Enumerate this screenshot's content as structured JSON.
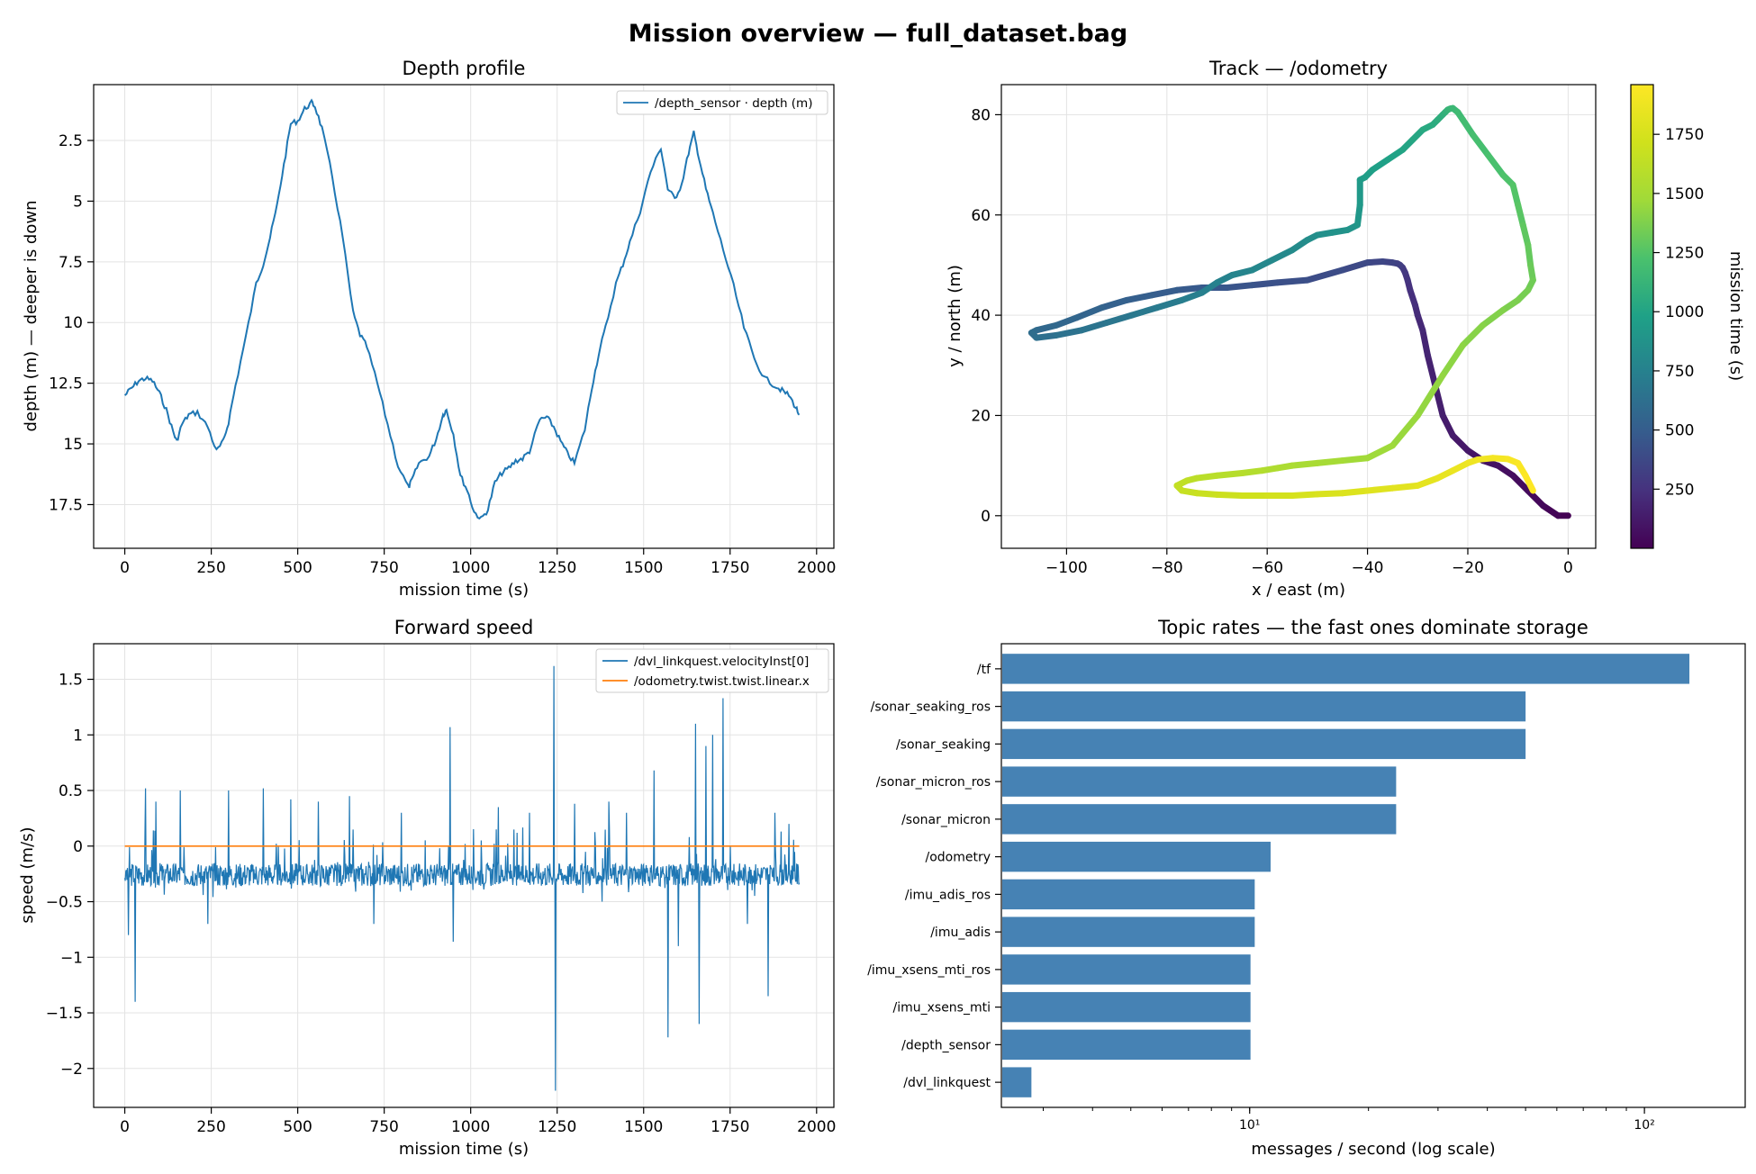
{
  "figure": {
    "title": "Mission overview — full_dataset.bag"
  },
  "chart_data": [
    {
      "id": "depth",
      "type": "line",
      "title": "Depth profile",
      "xlabel": "mission time (s)",
      "ylabel": "depth (m)  — deeper is down",
      "xlim": [
        -90,
        2050
      ],
      "ylim": [
        19.3,
        0.2
      ],
      "inverted_y": true,
      "xticks": [
        0,
        250,
        500,
        750,
        1000,
        1250,
        1500,
        1750,
        2000
      ],
      "yticks": [
        2.5,
        5.0,
        7.5,
        10.0,
        12.5,
        15.0,
        17.5
      ],
      "grid": true,
      "legend_position": "upper right",
      "series": [
        {
          "name": "/depth_sensor · depth (m)",
          "color": "#1f77b4",
          "x": [
            0,
            20,
            40,
            60,
            80,
            100,
            120,
            140,
            150,
            165,
            185,
            210,
            240,
            265,
            285,
            300,
            320,
            350,
            380,
            400,
            420,
            440,
            460,
            480,
            500,
            520,
            540,
            550,
            570,
            600,
            630,
            660,
            680,
            700,
            730,
            760,
            790,
            820,
            830,
            850,
            880,
            900,
            920,
            930,
            950,
            970,
            990,
            1010,
            1030,
            1050,
            1070,
            1090,
            1110,
            1130,
            1150,
            1170,
            1200,
            1220,
            1240,
            1260,
            1280,
            1300,
            1330,
            1350,
            1370,
            1390,
            1420,
            1440,
            1460,
            1490,
            1520,
            1550,
            1570,
            1590,
            1610,
            1630,
            1645,
            1660,
            1680,
            1700,
            1730,
            1760,
            1790,
            1820,
            1850,
            1880,
            1900,
            1920,
            1940,
            1950
          ],
          "y": [
            13.0,
            12.7,
            12.4,
            12.3,
            12.4,
            12.9,
            13.6,
            14.5,
            14.9,
            14.2,
            13.8,
            13.7,
            14.3,
            15.3,
            14.9,
            14.1,
            12.6,
            10.6,
            8.4,
            7.6,
            6.5,
            5.2,
            3.5,
            1.8,
            1.7,
            1.2,
            0.95,
            1.1,
            2.0,
            4.0,
            6.5,
            9.6,
            10.5,
            11.0,
            12.5,
            14.2,
            15.9,
            16.8,
            16.5,
            15.8,
            15.5,
            14.8,
            13.8,
            13.6,
            14.6,
            16.3,
            16.9,
            17.8,
            18.1,
            17.7,
            16.6,
            16.2,
            16.0,
            15.7,
            15.6,
            15.3,
            14.0,
            13.9,
            14.3,
            14.9,
            15.4,
            15.8,
            14.4,
            12.7,
            11.3,
            10.2,
            8.4,
            7.6,
            6.7,
            5.4,
            3.8,
            2.8,
            4.5,
            4.9,
            4.3,
            3.0,
            2.2,
            3.2,
            4.5,
            5.5,
            7.0,
            8.5,
            10.2,
            11.5,
            12.3,
            12.6,
            12.8,
            13.0,
            13.5,
            13.8
          ]
        }
      ]
    },
    {
      "id": "track",
      "type": "scatter",
      "title": "Track — /odometry",
      "xlabel": "x / east (m)",
      "ylabel": "y / north (m)",
      "xlim": [
        -113,
        5.5
      ],
      "ylim": [
        -6.5,
        86
      ],
      "xticks": [
        -100,
        -80,
        -60,
        -40,
        -20,
        0
      ],
      "yticks": [
        0,
        20,
        40,
        60,
        80
      ],
      "grid": true,
      "colorbar": {
        "label": "mission time (s)",
        "range": [
          0,
          1960
        ],
        "ticks": [
          250,
          500,
          750,
          1000,
          1250,
          1500,
          1750
        ],
        "colormap": "viridis"
      },
      "series": [
        {
          "x": [
            0,
            -2,
            -5,
            -8,
            -11,
            -14,
            -17,
            -20,
            -23,
            -25,
            -26.5,
            -28,
            -29,
            -30,
            -30.5,
            -31.5,
            -32,
            -32.5,
            -33,
            -33.5,
            -34,
            -35,
            -37,
            -40,
            -45,
            -52,
            -58,
            -63,
            -68,
            -73,
            -78,
            -83,
            -88,
            -93,
            -98,
            -102,
            -106,
            -107,
            -106,
            -102,
            -97,
            -92,
            -87,
            -82,
            -77,
            -73,
            -70,
            -67,
            -63,
            -59,
            -55,
            -52,
            -50,
            -47,
            -44,
            -42,
            -41.5,
            -41.5,
            -40.5,
            -39,
            -36,
            -33,
            -31,
            -29,
            -27,
            -26,
            -25,
            -24.5,
            -24,
            -23.5,
            -23,
            -22,
            -21,
            -19,
            -16,
            -13,
            -11,
            -10,
            -9,
            -8,
            -7.5,
            -7,
            -8,
            -10,
            -13,
            -17,
            -21,
            -25,
            -30,
            -35,
            -40,
            -45,
            -50,
            -55,
            -58,
            -61,
            -65,
            -70,
            -74,
            -76,
            -78,
            -77,
            -74,
            -70,
            -65,
            -60,
            -55,
            -50,
            -45,
            -40,
            -35,
            -30,
            -26,
            -23,
            -20,
            -18,
            -15,
            -12,
            -10,
            -8.5,
            -7
          ],
          "y": [
            0,
            0,
            2,
            5,
            8,
            10,
            11,
            13,
            16,
            20,
            26,
            32,
            37,
            40,
            42,
            45,
            47,
            48.5,
            49.5,
            50,
            50.3,
            50.5,
            50.7,
            50.5,
            49,
            47,
            46.5,
            46,
            45.5,
            45.5,
            45,
            44,
            43,
            41.5,
            39.5,
            38,
            37,
            36.5,
            35.5,
            36,
            37,
            38.5,
            40,
            41.5,
            43,
            44.5,
            46.5,
            48,
            49,
            51,
            53,
            55,
            56,
            56.5,
            57,
            58,
            62,
            67,
            67.5,
            69,
            71,
            73,
            75,
            77,
            78,
            79,
            80,
            80.5,
            81,
            81.2,
            81.3,
            80.5,
            79,
            76,
            72,
            68,
            66,
            62,
            58,
            54,
            50,
            47,
            45,
            43,
            41,
            38,
            34,
            28,
            20,
            14,
            11.5,
            11,
            10.5,
            10,
            9.5,
            9,
            8.5,
            8,
            7.5,
            7,
            6,
            5,
            4.5,
            4.2,
            4,
            4,
            4,
            4.3,
            4.5,
            5,
            5.5,
            6,
            7.5,
            9,
            10.5,
            11.2,
            11.5,
            11.3,
            10.5,
            8,
            5
          ],
          "t_range": [
            0,
            1960
          ]
        }
      ]
    },
    {
      "id": "speed",
      "type": "line",
      "title": "Forward speed",
      "xlabel": "mission time (s)",
      "ylabel": "speed (m/s)",
      "xlim": [
        -90,
        2050
      ],
      "ylim": [
        -2.35,
        1.82
      ],
      "xticks": [
        0,
        250,
        500,
        750,
        1000,
        1250,
        1500,
        1750,
        2000
      ],
      "yticks": [
        -2.0,
        -1.5,
        -1.0,
        -0.5,
        0.0,
        0.5,
        1.0,
        1.5
      ],
      "grid": true,
      "legend_position": "upper right",
      "series": [
        {
          "name": "/dvl_linkquest.velocityInst[0]",
          "color": "#1f77b4",
          "baseline": -0.25,
          "spikes_x": [
            10,
            30,
            60,
            90,
            160,
            240,
            300,
            400,
            480,
            560,
            650,
            720,
            800,
            940,
            950,
            1080,
            1170,
            1240,
            1245,
            1300,
            1380,
            1400,
            1450,
            1530,
            1570,
            1600,
            1650,
            1660,
            1680,
            1700,
            1730,
            1800,
            1860,
            1880,
            1920
          ],
          "spikes_y": [
            -0.8,
            -1.4,
            0.52,
            0.4,
            0.5,
            -0.7,
            0.5,
            0.52,
            0.42,
            0.4,
            0.45,
            -0.7,
            0.3,
            1.07,
            -0.86,
            0.35,
            0.3,
            1.62,
            -2.2,
            0.38,
            -0.5,
            0.4,
            0.3,
            0.68,
            -1.72,
            -0.9,
            1.1,
            -1.6,
            0.9,
            1.0,
            1.33,
            -0.7,
            -1.35,
            0.3,
            0.2
          ]
        },
        {
          "name": "/odometry.twist.twist.linear.x",
          "color": "#ff7f0e",
          "x": [
            0,
            1950
          ],
          "y": [
            0.0,
            0.0
          ]
        }
      ]
    },
    {
      "id": "rates",
      "type": "bar",
      "orientation": "horizontal",
      "title": "Topic rates — the fast ones dominate storage",
      "xlabel": "messages / second (log scale)",
      "xscale": "log",
      "xlim": [
        2.35,
        180
      ],
      "xticks": [
        10,
        100
      ],
      "xticklabels": [
        "10¹",
        "10²"
      ],
      "color": "#4682b4",
      "categories": [
        "/tf",
        "/sonar_seaking_ros",
        "/sonar_seaking",
        "/sonar_micron_ros",
        "/sonar_micron",
        "/odometry",
        "/imu_adis_ros",
        "/imu_adis",
        "/imu_xsens_mti_ros",
        "/imu_xsens_mti",
        "/depth_sensor",
        "/dvl_linkquest"
      ],
      "values": [
        130,
        50,
        50,
        23.5,
        23.5,
        11.3,
        10.3,
        10.3,
        10.05,
        10.05,
        10.05,
        2.8
      ]
    }
  ]
}
